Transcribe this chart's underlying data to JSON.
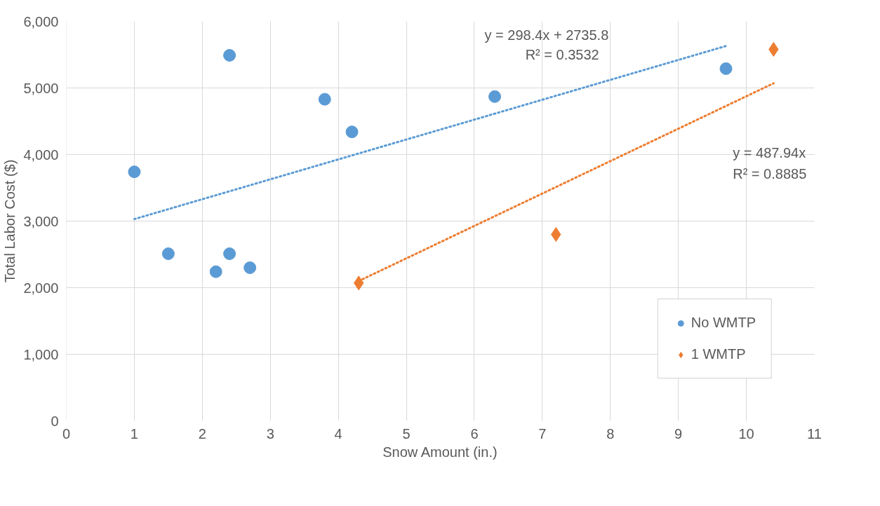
{
  "chart_data": {
    "type": "scatter",
    "xlabel": "Snow Amount (in.)",
    "ylabel": "Total Labor Cost ($)",
    "xlim": [
      0,
      11
    ],
    "xticks": [
      0,
      1,
      2,
      3,
      4,
      5,
      6,
      7,
      8,
      9,
      10,
      11
    ],
    "ylim": [
      0,
      6000
    ],
    "yticks": [
      0,
      {
        "value": 1000,
        "label": "1,000"
      },
      {
        "value": 2000,
        "label": "2,000"
      },
      {
        "value": 3000,
        "label": "3,000"
      },
      {
        "value": 4000,
        "label": "4,000"
      },
      {
        "value": 5000,
        "label": "5,000"
      },
      {
        "value": 6000,
        "label": "6,000"
      }
    ],
    "grid": true,
    "legend": "bottom right",
    "series": [
      {
        "name": "No WMTP",
        "color": "#5b9bd5",
        "marker": "circle",
        "x": [
          1,
          1.5,
          2.2,
          2.4,
          2.4,
          2.7,
          3.8,
          4.2,
          6.3,
          9.7
        ],
        "values": [
          3740,
          2510,
          2240,
          2510,
          5490,
          2300,
          4830,
          4340,
          4870,
          5290
        ]
      },
      {
        "name": "1 WMTP",
        "color": "#ed7d31",
        "marker": "diamond",
        "x": [
          4.3,
          7.2,
          10.4
        ],
        "values": [
          2070,
          2800,
          5580
        ]
      },
      {
        "type": "line",
        "color": "#5b9bd5",
        "line_style": "dotted",
        "x": [
          1,
          9.7
        ],
        "values": [
          3030,
          5630
        ]
      },
      {
        "type": "line",
        "color": "#ed7d31",
        "line_style": "dotted",
        "x": [
          4.3,
          10.4
        ],
        "values": [
          2100,
          5070
        ]
      }
    ],
    "annotations": [
      "y = 298.4x + 2735.8",
      "R² = 0.3532",
      "y = 487.94x",
      "R² = 0.8885"
    ]
  }
}
